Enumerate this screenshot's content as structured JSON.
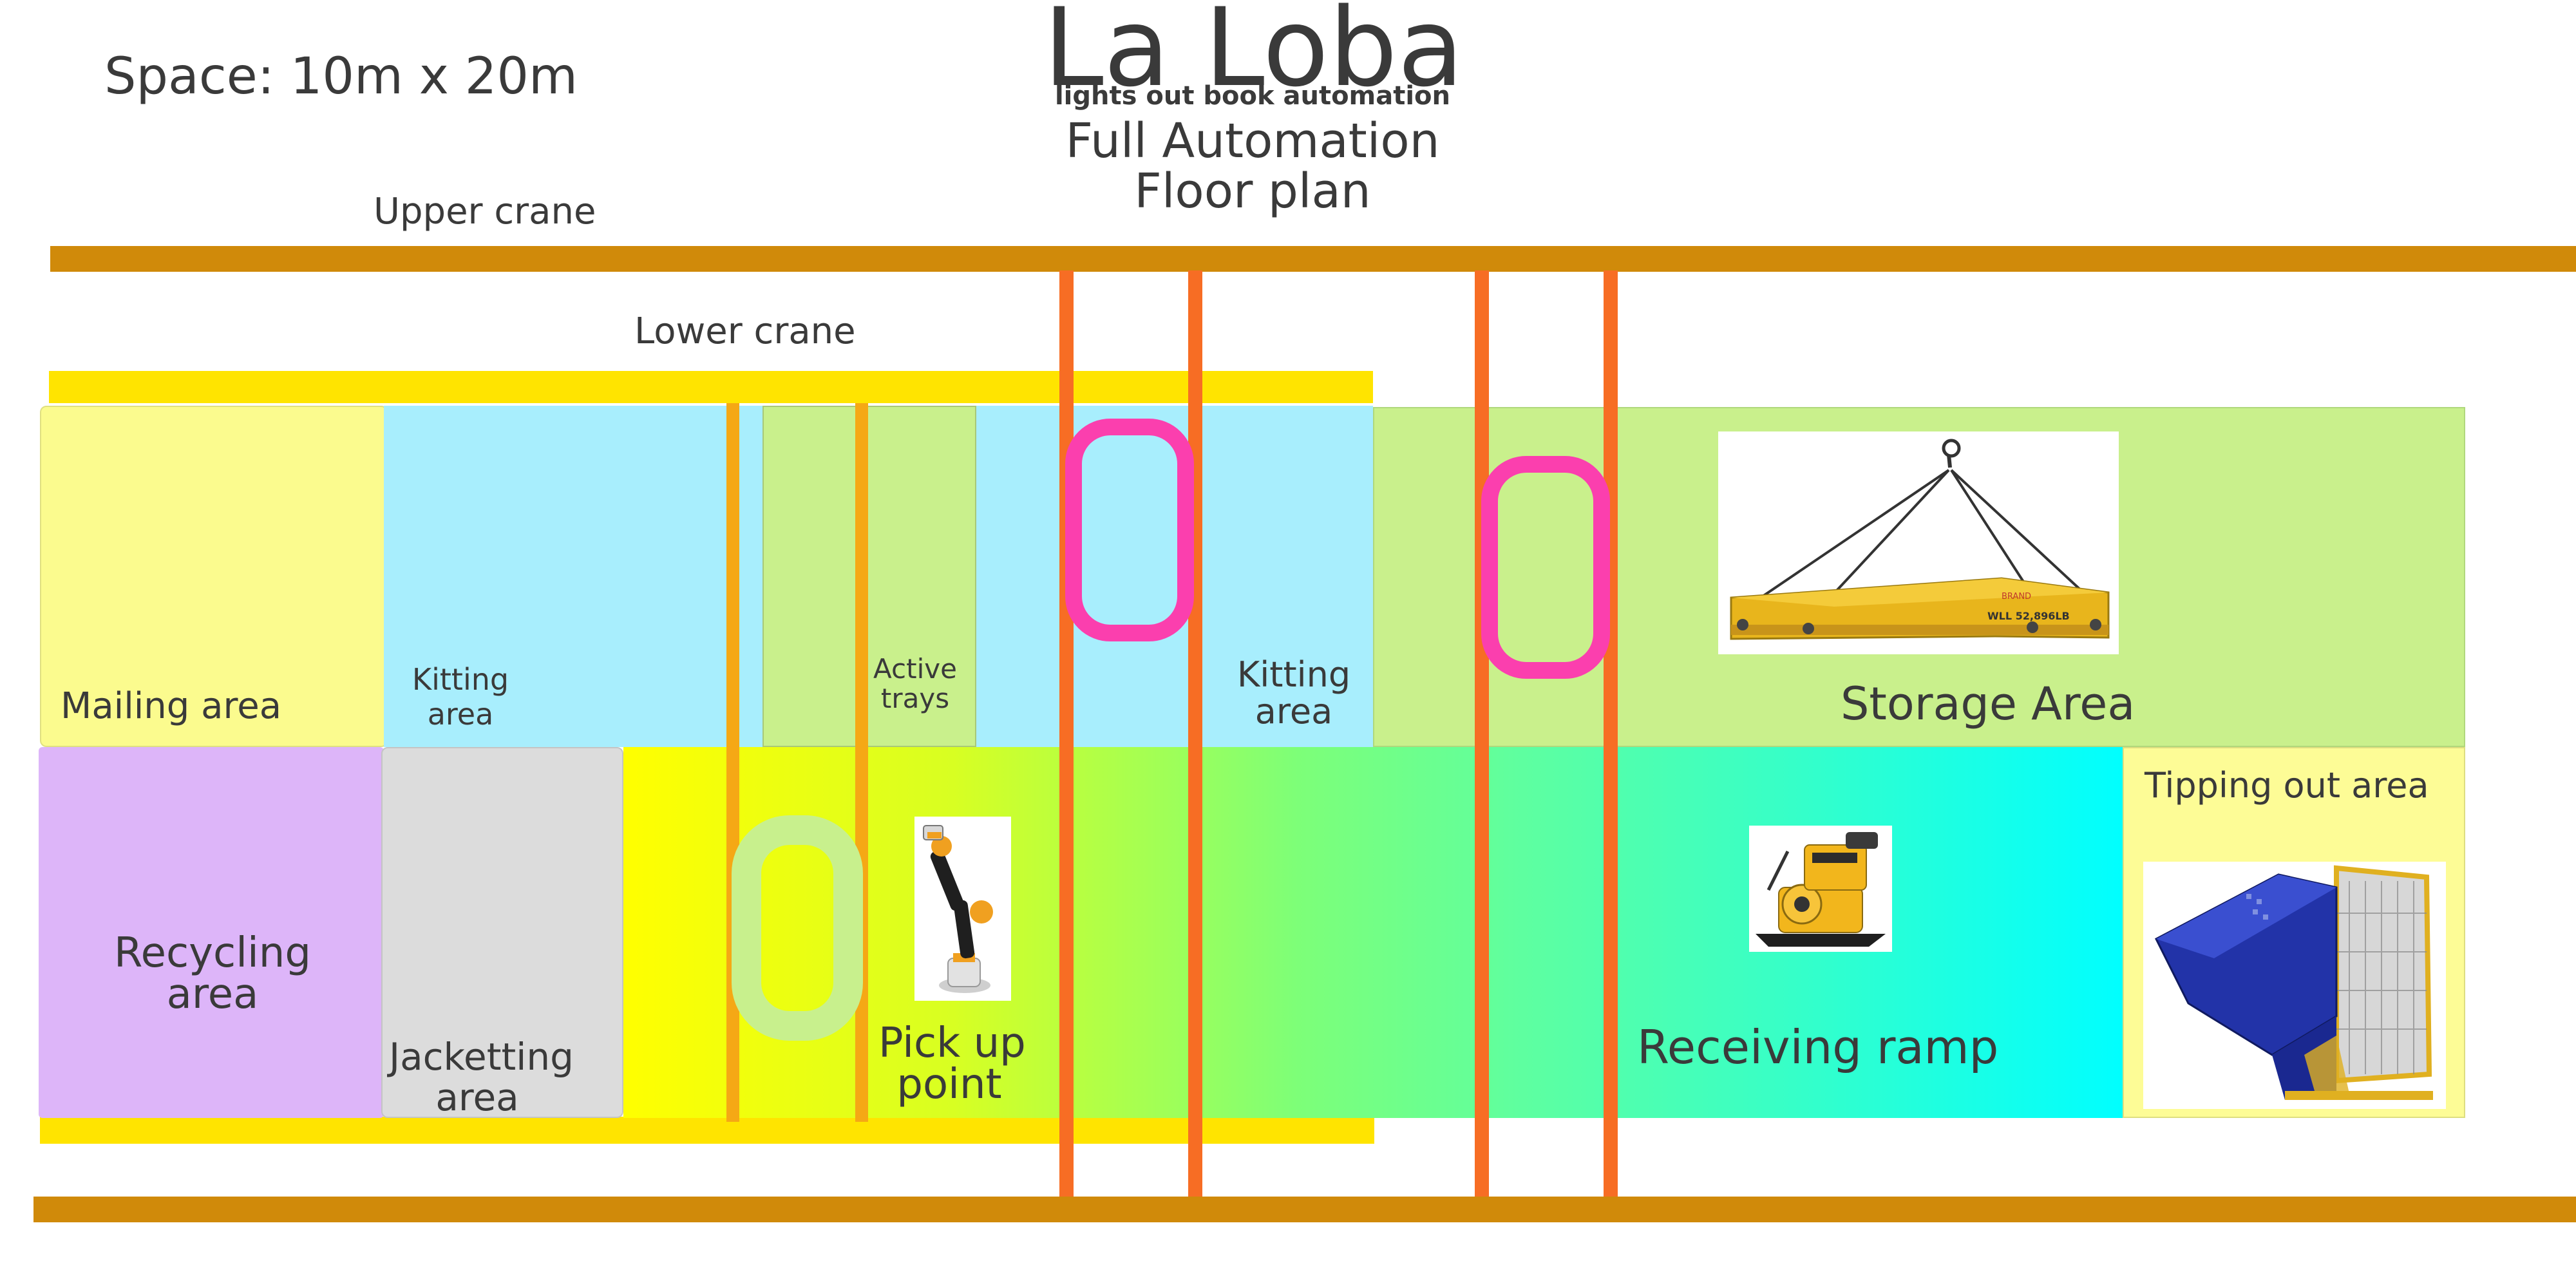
{
  "header": {
    "title": "La Loba",
    "tagline": "lights out book automation",
    "subtitle_line1": "Full Automation",
    "subtitle_line2": "Floor plan",
    "space": "Space: 10m x 20m"
  },
  "labels": {
    "upper_crane": "Upper crane",
    "lower_crane": "Lower crane",
    "mailing_area": "Mailing area",
    "kitting_area_1": [
      "Kitting",
      "area"
    ],
    "active_trays": [
      "Active",
      "trays"
    ],
    "kitting_area_2": [
      "Kitting",
      "area"
    ],
    "storage_area": "Storage Area",
    "recycling_area": [
      "Recycling",
      "area"
    ],
    "jacketting_area": [
      "Jacketting",
      "area"
    ],
    "pick_up_point": [
      "Pick up",
      "point"
    ],
    "receiving_ramp": "Receiving ramp",
    "tipping_out_area": "Tipping out area"
  },
  "images": {
    "spreader_beam_text": "WLL 52,896LB",
    "spreader_beam_brand": "BRAND"
  },
  "colors": {
    "crane_rail": "#d08a0a",
    "lower_crane_rail": "#ffe400",
    "gantry_beam": "#f76d24",
    "mailing": "#fbfb8e",
    "kitting": "#a8eefd",
    "storage": "#c9f08c",
    "recycling": "#ddb5f9",
    "jacketting": "#dcdcdc",
    "tipping": "#fdfc96",
    "pink_loop": "#fb3fae",
    "green_loop": "#c8f08d"
  }
}
